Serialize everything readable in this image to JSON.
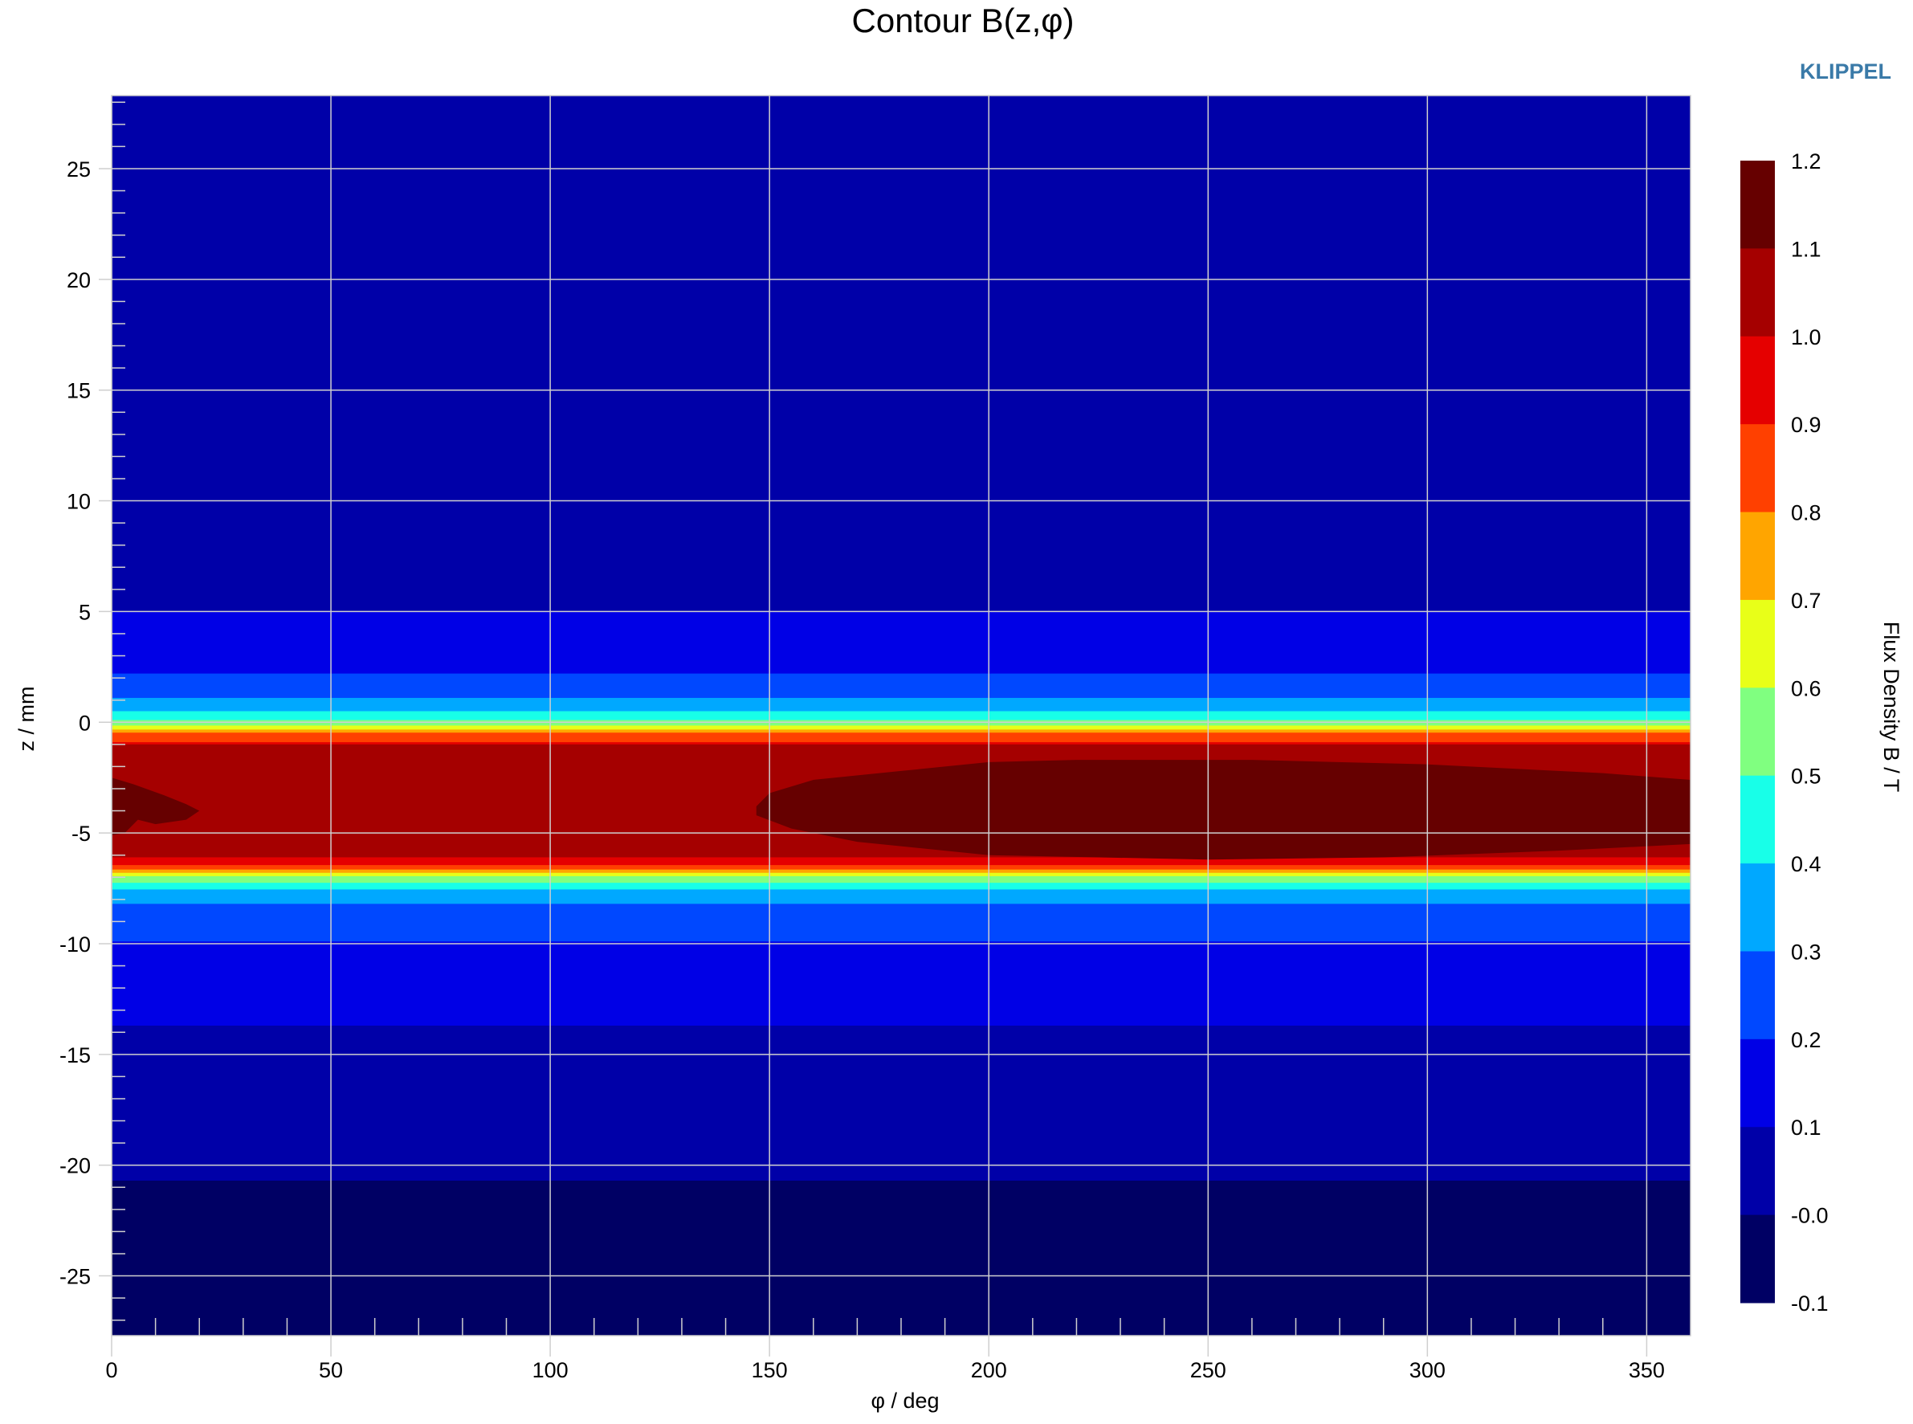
{
  "chart_data": {
    "type": "contour",
    "title": "Contour B(z,φ)",
    "xlabel": "φ / deg",
    "ylabel": "z / mm",
    "colorbar_label": "Flux Density B / T",
    "xlim": [
      0,
      360
    ],
    "ylim": [
      -27.7,
      28.3
    ],
    "xticks": [
      "0",
      "50",
      "100",
      "150",
      "200",
      "250",
      "300",
      "350"
    ],
    "xtick_values": [
      0,
      50,
      100,
      150,
      200,
      250,
      300,
      350
    ],
    "yticks": [
      "25",
      "20",
      "15",
      "10",
      "5",
      "0",
      "-5",
      "-10",
      "-15",
      "-20",
      "-25"
    ],
    "ytick_values": [
      25,
      20,
      15,
      10,
      5,
      0,
      -5,
      -10,
      -15,
      -20,
      -25
    ],
    "grid": true,
    "colorbar_ticks": [
      "1.2",
      "1.1",
      "1.0",
      "0.9",
      "0.8",
      "0.7",
      "0.6",
      "0.5",
      "0.4",
      "0.3",
      "0.2",
      "0.1",
      "-0.0",
      "-0.1"
    ],
    "levels": [
      {
        "range": [
          1.1,
          1.2
        ],
        "color": "#660000"
      },
      {
        "range": [
          1.0,
          1.1
        ],
        "color": "#a50000"
      },
      {
        "range": [
          0.9,
          1.0
        ],
        "color": "#e50000"
      },
      {
        "range": [
          0.8,
          0.9
        ],
        "color": "#ff4000"
      },
      {
        "range": [
          0.7,
          0.8
        ],
        "color": "#ffa500"
      },
      {
        "range": [
          0.6,
          0.7
        ],
        "color": "#e8ff18"
      },
      {
        "range": [
          0.5,
          0.6
        ],
        "color": "#80ff80"
      },
      {
        "range": [
          0.4,
          0.5
        ],
        "color": "#18ffe8"
      },
      {
        "range": [
          0.3,
          0.4
        ],
        "color": "#00a8ff"
      },
      {
        "range": [
          0.2,
          0.3
        ],
        "color": "#0048ff"
      },
      {
        "range": [
          0.1,
          0.2
        ],
        "color": "#0000e6"
      },
      {
        "range": [
          0.0,
          0.1
        ],
        "color": "#0000a8"
      },
      {
        "range": [
          -0.1,
          0.0
        ],
        "color": "#000064"
      }
    ],
    "bands_by_z": [
      {
        "z": [
          5.0,
          28.3
        ],
        "level": 11
      },
      {
        "z": [
          2.2,
          5.0
        ],
        "level": 10
      },
      {
        "z": [
          1.1,
          2.2
        ],
        "level": 9
      },
      {
        "z": [
          0.5,
          1.1
        ],
        "level": 8
      },
      {
        "z": [
          0.1,
          0.5
        ],
        "level": 7
      },
      {
        "z": [
          -0.15,
          0.1
        ],
        "level": 6
      },
      {
        "z": [
          -0.33,
          -0.15
        ],
        "level": 5
      },
      {
        "z": [
          -0.47,
          -0.33
        ],
        "level": 4
      },
      {
        "z": [
          -0.9,
          -0.47
        ],
        "level": 3
      },
      {
        "z": [
          -1.0,
          -0.9
        ],
        "level": 2
      },
      {
        "z": [
          -6.1,
          -1.0
        ],
        "level": 1
      },
      {
        "z": [
          -6.45,
          -6.1
        ],
        "level": 2
      },
      {
        "z": [
          -6.65,
          -6.45
        ],
        "level": 3
      },
      {
        "z": [
          -6.8,
          -6.65
        ],
        "level": 4
      },
      {
        "z": [
          -6.95,
          -6.8
        ],
        "level": 5
      },
      {
        "z": [
          -7.25,
          -6.95
        ],
        "level": 6
      },
      {
        "z": [
          -7.55,
          -7.25
        ],
        "level": 7
      },
      {
        "z": [
          -8.2,
          -7.55
        ],
        "level": 8
      },
      {
        "z": [
          -9.9,
          -8.2
        ],
        "level": 9
      },
      {
        "z": [
          -13.7,
          -9.9
        ],
        "level": 10
      },
      {
        "z": [
          -20.7,
          -13.7
        ],
        "level": 11
      },
      {
        "z": [
          -27.7,
          -20.7
        ],
        "level": 12
      }
    ],
    "regions": [
      {
        "level": 0,
        "points": [
          [
            147,
            -3.8
          ],
          [
            150,
            -3.2
          ],
          [
            160,
            -2.6
          ],
          [
            180,
            -2.2
          ],
          [
            200,
            -1.8
          ],
          [
            220,
            -1.7
          ],
          [
            260,
            -1.7
          ],
          [
            300,
            -1.9
          ],
          [
            340,
            -2.3
          ],
          [
            360,
            -2.6
          ],
          [
            360,
            -5.5
          ],
          [
            330,
            -5.8
          ],
          [
            290,
            -6.1
          ],
          [
            250,
            -6.2
          ],
          [
            200,
            -6.0
          ],
          [
            170,
            -5.4
          ],
          [
            155,
            -4.8
          ],
          [
            147,
            -4.2
          ]
        ]
      },
      {
        "level": 0,
        "points": [
          [
            0,
            -2.5
          ],
          [
            5,
            -2.8
          ],
          [
            12,
            -3.3
          ],
          [
            17,
            -3.7
          ],
          [
            20,
            -4.0
          ],
          [
            17,
            -4.4
          ],
          [
            10,
            -4.6
          ],
          [
            6,
            -4.4
          ],
          [
            3,
            -5.0
          ],
          [
            0,
            -5.1
          ]
        ]
      }
    ]
  },
  "brand": "KLIPPEL"
}
